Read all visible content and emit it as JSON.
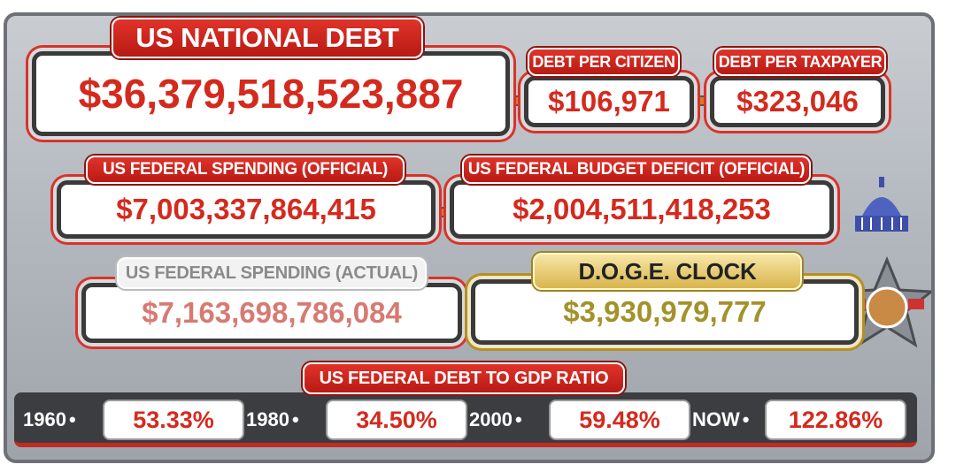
{
  "panels": [
    {
      "label": "US NATIONAL DEBT",
      "value": "$36,379,518,523,887"
    },
    {
      "label": "DEBT PER CITIZEN",
      "value": "$106,971"
    },
    {
      "label": "DEBT PER TAXPAYER",
      "value": "$323,046"
    },
    {
      "label": "US FEDERAL SPENDING (OFFICIAL)",
      "value": "$7,003,337,864,415"
    },
    {
      "label": "US FEDERAL BUDGET DEFICIT (OFFICIAL)",
      "value": "$2,004,511,418,253"
    },
    {
      "label": "US FEDERAL SPENDING (ACTUAL)",
      "value": "$7,163,698,786,084"
    },
    {
      "label": "D.O.G.E. CLOCK",
      "value": "$3,930,979,777"
    }
  ],
  "gdp_ratio": {
    "title": "US FEDERAL DEBT TO GDP RATIO",
    "items": [
      {
        "year": "1960",
        "value": "53.33%"
      },
      {
        "year": "1980",
        "value": "34.50%"
      },
      {
        "year": "2000",
        "value": "59.48%"
      },
      {
        "year": "NOW",
        "value": "122.86%"
      }
    ]
  }
}
